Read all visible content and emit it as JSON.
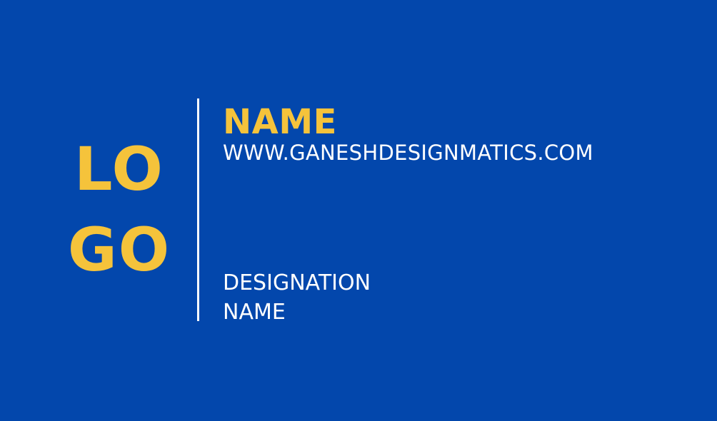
{
  "logo": {
    "line1": "LO",
    "line2": "GO"
  },
  "name": "NAME",
  "website": "WWW.GANESHDESIGNMATICS.COM",
  "designation": {
    "line1": "DESIGNATION",
    "line2": "NAME"
  },
  "colors": {
    "background": "#0347ac",
    "accent": "#f5c33b",
    "text": "#ffffff"
  }
}
